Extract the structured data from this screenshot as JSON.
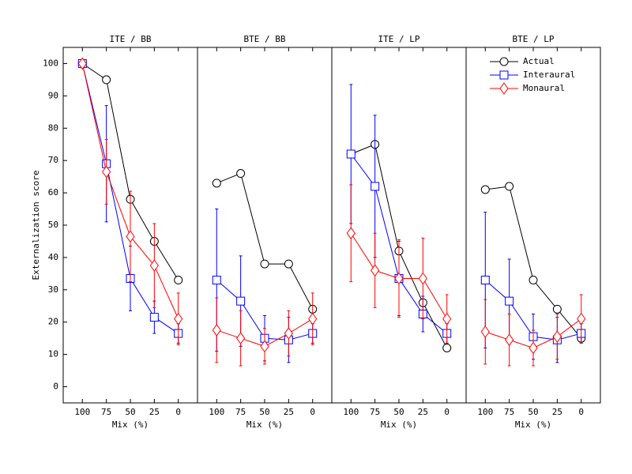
{
  "chart_data": [
    {
      "type": "line",
      "title": "ITE / BB",
      "xlabel": "Mix (%)",
      "ylabel": "Externalization score",
      "x": [
        100,
        75,
        50,
        25,
        0
      ],
      "xlim": [
        120,
        -20
      ],
      "xticks": [
        100,
        75,
        50,
        25,
        0
      ],
      "ylim": [
        -5,
        105
      ],
      "yticks": [
        0,
        10,
        20,
        30,
        40,
        50,
        60,
        70,
        80,
        90,
        100
      ],
      "series": [
        {
          "color": "#000000",
          "marker": "circle",
          "values": [
            100,
            95,
            58,
            45,
            33
          ]
        },
        {
          "color": "#0000ff",
          "marker": "square",
          "values": [
            100,
            69,
            33.5,
            21.5,
            16.5
          ],
          "errors": [
            0,
            18,
            10,
            5,
            3
          ]
        },
        {
          "color": "#ff0000",
          "marker": "diamond",
          "values": [
            100,
            66.5,
            46.5,
            37.5,
            21
          ],
          "errors": [
            0,
            10,
            14,
            13,
            8
          ]
        }
      ]
    },
    {
      "type": "line",
      "title": "BTE / BB",
      "xlabel": "Mix (%)",
      "x": [
        100,
        75,
        50,
        25,
        0
      ],
      "xlim": [
        120,
        -20
      ],
      "xticks": [
        100,
        75,
        50,
        25,
        0
      ],
      "ylim": [
        -5,
        105
      ],
      "series": [
        {
          "color": "#000000",
          "marker": "circle",
          "values": [
            63,
            66,
            38,
            38,
            24
          ]
        },
        {
          "color": "#0000ff",
          "marker": "square",
          "values": [
            33,
            26.5,
            15,
            14.5,
            16.5
          ],
          "errors": [
            22,
            14,
            7,
            7,
            3
          ]
        },
        {
          "color": "#ff0000",
          "marker": "diamond",
          "values": [
            17.5,
            15,
            12.5,
            16.5,
            21
          ],
          "errors": [
            10,
            8.5,
            5.5,
            7,
            8
          ]
        }
      ]
    },
    {
      "type": "line",
      "title": "ITE / LP",
      "xlabel": "Mix (%)",
      "x": [
        100,
        75,
        50,
        25,
        0
      ],
      "xlim": [
        120,
        -20
      ],
      "xticks": [
        100,
        75,
        50,
        25,
        0
      ],
      "ylim": [
        -5,
        105
      ],
      "series": [
        {
          "color": "#000000",
          "marker": "circle",
          "values": [
            72,
            75,
            42,
            26,
            12
          ]
        },
        {
          "color": "#0000ff",
          "marker": "square",
          "values": [
            72,
            62,
            33.5,
            22.5,
            16.5
          ],
          "errors": [
            21.5,
            22,
            11.5,
            5.5,
            3
          ]
        },
        {
          "color": "#ff0000",
          "marker": "diamond",
          "values": [
            47.5,
            36,
            33.5,
            33.5,
            21
          ],
          "errors": [
            15,
            11.5,
            12,
            12.5,
            7.5
          ]
        }
      ]
    },
    {
      "type": "line",
      "title": "BTE / LP",
      "xlabel": "Mix (%)",
      "x": [
        100,
        75,
        50,
        25,
        0
      ],
      "xlim": [
        120,
        -20
      ],
      "xticks": [
        100,
        75,
        50,
        25,
        0
      ],
      "ylim": [
        -5,
        105
      ],
      "legend": "upper right",
      "series": [
        {
          "name": "Actual",
          "color": "#000000",
          "marker": "circle",
          "values": [
            61,
            62,
            33,
            24,
            15
          ]
        },
        {
          "name": "Interaural",
          "color": "#0000ff",
          "marker": "square",
          "values": [
            33,
            26.5,
            15.5,
            14.5,
            16.5
          ],
          "errors": [
            21,
            13,
            7,
            7,
            3
          ]
        },
        {
          "name": "Monaural",
          "color": "#ff0000",
          "marker": "diamond",
          "values": [
            17,
            14.5,
            12,
            15.5,
            21
          ],
          "errors": [
            10,
            8,
            5.5,
            7,
            7.5
          ]
        }
      ]
    }
  ]
}
